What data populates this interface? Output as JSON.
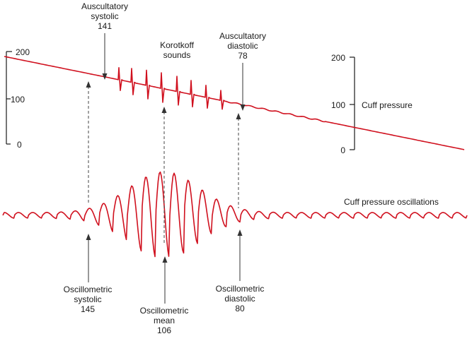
{
  "left_axis": {
    "ticks": [
      "200",
      "100",
      "0"
    ]
  },
  "right_axis": {
    "ticks": [
      "200",
      "100",
      "0"
    ],
    "label": "Cuff pressure"
  },
  "oscillation_label": "Cuff pressure oscillations",
  "annotations": {
    "auscultatory_systolic": {
      "line1": "Auscultatory",
      "line2": "systolic",
      "value": "141"
    },
    "korotkoff": {
      "line1": "Korotkoff",
      "line2": "sounds"
    },
    "auscultatory_diastolic": {
      "line1": "Auscultatory",
      "line2": "diastolic",
      "value": "78"
    },
    "oscillometric_systolic": {
      "line1": "Oscillometric",
      "line2": "systolic",
      "value": "145"
    },
    "oscillometric_mean": {
      "line1": "Oscillometric",
      "line2": "mean",
      "value": "106"
    },
    "oscillometric_diastolic": {
      "line1": "Oscillometric",
      "line2": "diastolic",
      "value": "80"
    }
  },
  "colors": {
    "trace": "#d0101e",
    "text": "#1a1a1a"
  }
}
